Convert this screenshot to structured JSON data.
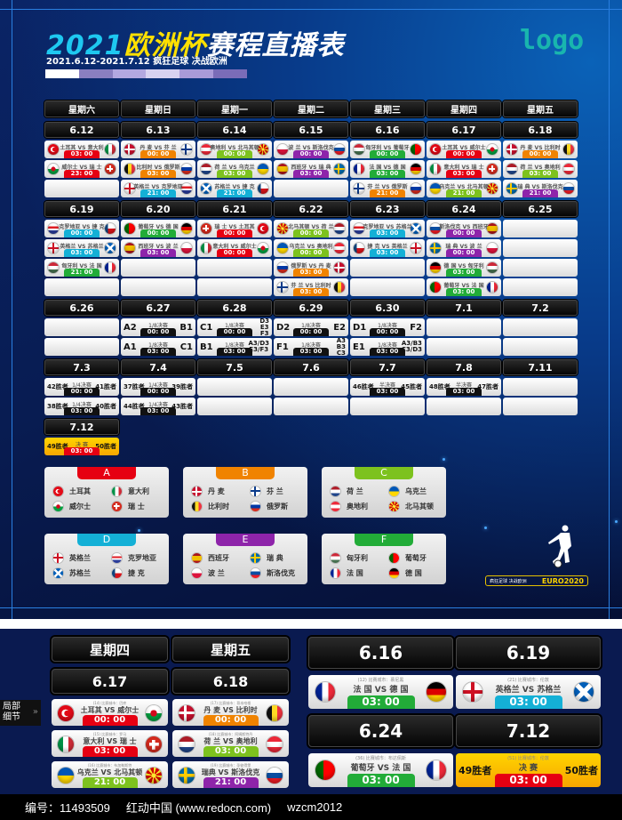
{
  "header": {
    "title_year": "2021",
    "title_euro": "欧洲杯",
    "title_rest": "赛程直播表",
    "subtitle": "2021.6.12-2021.7.12  疯狂足球 决战欧洲",
    "logo": "logo",
    "colorbar": [
      "#ffffff",
      "#8a7fc0",
      "#b3a8e0",
      "#d8d2f0",
      "#a99ad8",
      "#7a6cb8"
    ]
  },
  "colors": {
    "red": "#e60012",
    "orange": "#f08300",
    "lime": "#7dc21e",
    "green": "#22ac38",
    "cyan": "#14b0d6",
    "purple": "#8e24aa",
    "black": "#111111"
  },
  "flags": {
    "土耳其": "tr",
    "意大利": "it",
    "威尔士": "wal",
    "瑞士": "ch",
    "瑞 士": "ch",
    "丹麦": "dk",
    "丹 麦": "dk",
    "芬兰": "fi",
    "芬 兰": "fi",
    "比利时": "be",
    "俄罗斯": "ru",
    "英格兰": "en",
    "克罗地亚": "hr",
    "奥地利": "at",
    "北马其顿": "mk",
    "荷兰": "nl",
    "荷 兰": "nl",
    "乌克兰": "ua",
    "苏格兰": "sco",
    "捷克": "cz",
    "捷 克": "cz",
    "波兰": "pl",
    "波 兰": "pl",
    "斯洛伐克": "sk",
    "西班牙": "es",
    "瑞典": "se",
    "瑞 典": "se",
    "瑞典 ": "se",
    "匈牙利": "hu",
    "葡萄牙": "pt",
    "法国": "fr",
    "法 国": "fr",
    "德国": "de",
    "德 国": "de"
  },
  "schedule": {
    "weekdays": [
      "星期六",
      "星期日",
      "星期一",
      "星期二",
      "星期三",
      "星期四",
      "星期五"
    ],
    "weeks": [
      {
        "dates": [
          "6.12",
          "6.13",
          "6.14",
          "6.15",
          "6.16",
          "6.17",
          "6.18"
        ],
        "rows": [
          [
            {
              "home": "土耳其",
              "away": "意大利",
              "time": "03: 00",
              "color": "red"
            },
            {
              "home": "丹 麦",
              "away": "芬 兰",
              "time": "00: 00",
              "color": "orange"
            },
            {
              "home": "奥地利",
              "away": "北马其顿",
              "time": "00: 00",
              "color": "lime"
            },
            {
              "home": "波 兰",
              "away": "斯洛伐克",
              "time": "00: 00",
              "color": "purple"
            },
            {
              "home": "匈牙利",
              "away": "葡萄牙",
              "time": "00: 00",
              "color": "green"
            },
            {
              "home": "土耳其",
              "away": "威尔士",
              "time": "00: 00",
              "color": "red"
            },
            {
              "home": "丹 麦",
              "away": "比利时",
              "time": "00: 00",
              "color": "orange"
            }
          ],
          [
            {
              "home": "威尔士",
              "away": "瑞 士",
              "time": "23: 00",
              "color": "red"
            },
            {
              "home": "比利时",
              "away": "俄罗斯",
              "time": "03: 00",
              "color": "orange"
            },
            {
              "home": "荷 兰",
              "away": "乌克兰",
              "time": "03: 00",
              "color": "lime"
            },
            {
              "home": "西班牙",
              "away": "瑞 典",
              "time": "03: 00",
              "color": "purple"
            },
            {
              "home": "法 国",
              "away": "德 国",
              "time": "03: 00",
              "color": "green"
            },
            {
              "home": "意大利",
              "away": "瑞 士",
              "time": "03: 00",
              "color": "red"
            },
            {
              "home": "荷 兰",
              "away": "奥地利",
              "time": "03: 00",
              "color": "lime"
            }
          ],
          [
            null,
            {
              "home": "英格兰",
              "away": "克罗地亚",
              "time": "21: 00",
              "color": "cyan"
            },
            {
              "home": "苏格兰",
              "away": "捷 克",
              "time": "21: 00",
              "color": "cyan"
            },
            null,
            {
              "home": "芬 兰",
              "away": "俄罗斯",
              "time": "21: 00",
              "color": "orange"
            },
            {
              "home": "乌克兰",
              "away": "北马其顿",
              "time": "21: 00",
              "color": "lime"
            },
            {
              "home": "瑞 典",
              "away": "斯洛伐克",
              "time": "21: 00",
              "color": "purple"
            }
          ]
        ]
      },
      {
        "dates": [
          "6.19",
          "6.20",
          "6.21",
          "6.22",
          "6.23",
          "6.24",
          "6.25"
        ],
        "rows": [
          [
            {
              "home": "克罗地亚",
              "away": "捷 克",
              "time": "00: 00",
              "color": "cyan"
            },
            {
              "home": "葡萄牙",
              "away": "德 国",
              "time": "00: 00",
              "color": "green"
            },
            {
              "home": "瑞 士",
              "away": "土耳其",
              "time": "00: 00",
              "color": "red"
            },
            {
              "home": "北马其顿",
              "away": "荷 兰",
              "time": "00: 00",
              "color": "lime"
            },
            {
              "home": "克罗地亚",
              "away": "苏格兰",
              "time": "03: 00",
              "color": "cyan"
            },
            {
              "home": "斯洛伐克",
              "away": "西班牙",
              "time": "00: 00",
              "color": "purple"
            },
            null
          ],
          [
            {
              "home": "英格兰",
              "away": "苏格兰",
              "time": "03: 00",
              "color": "cyan"
            },
            {
              "home": "西班牙",
              "away": "波 兰",
              "time": "03: 00",
              "color": "purple"
            },
            {
              "home": "意大利",
              "away": "威尔士",
              "time": "00: 00",
              "color": "red"
            },
            {
              "home": "乌克兰",
              "away": "奥地利",
              "time": "00: 00",
              "color": "lime"
            },
            {
              "home": "捷 克",
              "away": "英格兰",
              "time": "03: 00",
              "color": "cyan"
            },
            {
              "home": "瑞 典",
              "away": "波 兰",
              "time": "00: 00",
              "color": "purple"
            },
            null
          ],
          [
            {
              "home": "匈牙利",
              "away": "法 国",
              "time": "21: 00",
              "color": "green"
            },
            null,
            null,
            {
              "home": "俄罗斯",
              "away": "丹 麦",
              "time": "03: 00",
              "color": "orange"
            },
            null,
            {
              "home": "德 国",
              "away": "匈牙利",
              "time": "03: 00",
              "color": "green"
            },
            null
          ],
          [
            null,
            null,
            null,
            {
              "home": "芬 兰",
              "away": "比利时",
              "time": "03: 00",
              "color": "orange"
            },
            null,
            {
              "home": "葡萄牙",
              "away": "法 国",
              "time": "03: 00",
              "color": "green"
            },
            null
          ]
        ]
      },
      {
        "dates": [
          "6.26",
          "6.27",
          "6.28",
          "6.29",
          "6.30",
          "7.1",
          "7.2"
        ],
        "rows": [
          [
            null,
            {
              "ko": true,
              "home": "A2",
              "away": "B1",
              "stage": "1/8决赛",
              "time": "00: 00"
            },
            {
              "ko": true,
              "home": "C1",
              "away": "D3\nE3\nF3",
              "stage": "1/8决赛",
              "time": "00: 00"
            },
            {
              "ko": true,
              "home": "D2",
              "away": "E2",
              "stage": "1/8决赛",
              "time": "00: 00"
            },
            {
              "ko": true,
              "home": "D1",
              "away": "F2",
              "stage": "1/8决赛",
              "time": "00: 00"
            },
            null,
            null
          ],
          [
            null,
            {
              "ko": true,
              "home": "A1",
              "away": "C1",
              "stage": "1/8决赛",
              "time": "03: 00"
            },
            {
              "ko": true,
              "home": "B1",
              "away": "A3/D3\nE3/F3",
              "stage": "1/8决赛",
              "time": "03: 00"
            },
            {
              "ko": true,
              "home": "F1",
              "away": "A3\nB3\nC3",
              "stage": "1/8决赛",
              "time": "03: 00"
            },
            {
              "ko": true,
              "home": "E1",
              "away": "A3/B3\nC3/D3",
              "stage": "1/8决赛",
              "time": "03: 00"
            },
            null,
            null
          ]
        ]
      },
      {
        "dates": [
          "7.3",
          "7.4",
          "7.5",
          "7.6",
          "7.7",
          "7.8",
          "7.11"
        ],
        "rows": [
          [
            {
              "ko": true,
              "win": true,
              "home": "42胜者",
              "away": "41胜者",
              "stage": "1/4决赛",
              "time": "00: 00"
            },
            {
              "ko": true,
              "win": true,
              "home": "37胜者",
              "away": "39胜者",
              "stage": "1/4决赛",
              "time": "00: 00"
            },
            null,
            null,
            {
              "ko": true,
              "win": true,
              "home": "46胜者",
              "away": "45胜者",
              "stage": "半决赛",
              "time": "03: 00"
            },
            {
              "ko": true,
              "win": true,
              "home": "48胜者",
              "away": "47胜者",
              "stage": "半决赛",
              "time": "03: 00"
            },
            null
          ],
          [
            {
              "ko": true,
              "win": true,
              "home": "38胜者",
              "away": "40胜者",
              "stage": "1/4决赛",
              "time": "03: 00"
            },
            {
              "ko": true,
              "win": true,
              "home": "44胜者",
              "away": "43胜者",
              "stage": "1/4决赛",
              "time": "03: 00"
            },
            null,
            null,
            null,
            null,
            null
          ]
        ]
      },
      {
        "dates": [
          "7.12"
        ],
        "rows": [
          [
            {
              "ko": true,
              "win": true,
              "final": true,
              "home": "49胜者",
              "away": "50胜者",
              "stage": "决 赛",
              "time": "03: 00"
            }
          ]
        ]
      }
    ]
  },
  "groups": [
    {
      "letter": "A",
      "color": "#e60012",
      "teams": [
        "土耳其",
        "意大利",
        "威尔士",
        "瑞 士"
      ]
    },
    {
      "letter": "B",
      "color": "#f08300",
      "teams": [
        "丹 麦",
        "芬 兰",
        "比利时",
        "俄罗斯"
      ]
    },
    {
      "letter": "C",
      "color": "#7dc21e",
      "teams": [
        "荷 兰",
        "乌克兰",
        "奥地利",
        "北马其顿"
      ]
    },
    {
      "letter": "D",
      "color": "#14b0d6",
      "teams": [
        "英格兰",
        "克罗地亚",
        "苏格兰",
        "捷 克"
      ]
    },
    {
      "letter": "E",
      "color": "#8e24aa",
      "teams": [
        "西班牙",
        "瑞 典",
        "波 兰",
        "斯洛伐克"
      ]
    },
    {
      "letter": "F",
      "color": "#22ac38",
      "teams": [
        "匈牙利",
        "葡萄牙",
        "法 国",
        "德 国"
      ]
    }
  ],
  "badge": {
    "slogan": "疯狂足球 决战欧洲",
    "euro": "EURO2020"
  },
  "detail": {
    "label": "局部\n细节",
    "left_columns": [
      {
        "weekday": "星期四",
        "date": "6.17",
        "matches": [
          {
            "caption": "(14) 比赛城市：巴库",
            "home": "土耳其",
            "away": "威尔士",
            "time": "00: 00",
            "color": "red"
          },
          {
            "caption": "(15) 比赛城市：罗马",
            "home": "意大利",
            "away": "瑞 士",
            "time": "03: 00",
            "color": "red"
          },
          {
            "caption": "(16) 比赛城市：布加勒斯特",
            "home": "乌克兰",
            "away": "北马其顿",
            "time": "21: 00",
            "color": "lime"
          }
        ]
      },
      {
        "weekday": "星期五",
        "date": "6.18",
        "matches": [
          {
            "caption": "(17) 比赛城市：哥本哈根",
            "home": "丹 麦",
            "away": "比利时",
            "time": "00: 00",
            "color": "orange"
          },
          {
            "caption": "(18) 比赛城市：阿姆斯特丹",
            "home": "荷 兰",
            "away": "奥地利",
            "time": "03: 00",
            "color": "lime"
          },
          {
            "caption": "(19) 比赛城市：圣彼得堡",
            "home": "瑞典",
            "away": "斯洛伐克",
            "time": "21: 00",
            "color": "purple"
          }
        ]
      }
    ],
    "right_blocks": [
      {
        "date": "6.16",
        "match": {
          "caption": "(12) 比赛城市：慕尼黑",
          "home": "法 国",
          "away": "德 国",
          "time": "03: 00",
          "color": "green"
        }
      },
      {
        "date": "6.19",
        "match": {
          "caption": "(21) 比赛城市：伦敦",
          "home": "英格兰",
          "away": "苏格兰",
          "time": "03: 00",
          "color": "cyan"
        }
      },
      {
        "date": "6.24",
        "match": {
          "caption": "(36) 比赛城市：布达佩斯",
          "home": "葡萄牙",
          "away": "法 国",
          "time": "03: 00",
          "color": "green"
        }
      },
      {
        "date": "7.12",
        "match": {
          "caption": "(51) 比赛城市：伦敦",
          "ko": true,
          "final": true,
          "home": "49胜者",
          "away": "50胜者",
          "stage": "决 赛",
          "time": "03: 00"
        }
      }
    ]
  },
  "footer": {
    "id": "编号：11493509",
    "site": "红动中国 (www.redocn.com)",
    "author": "wzcm2012"
  }
}
